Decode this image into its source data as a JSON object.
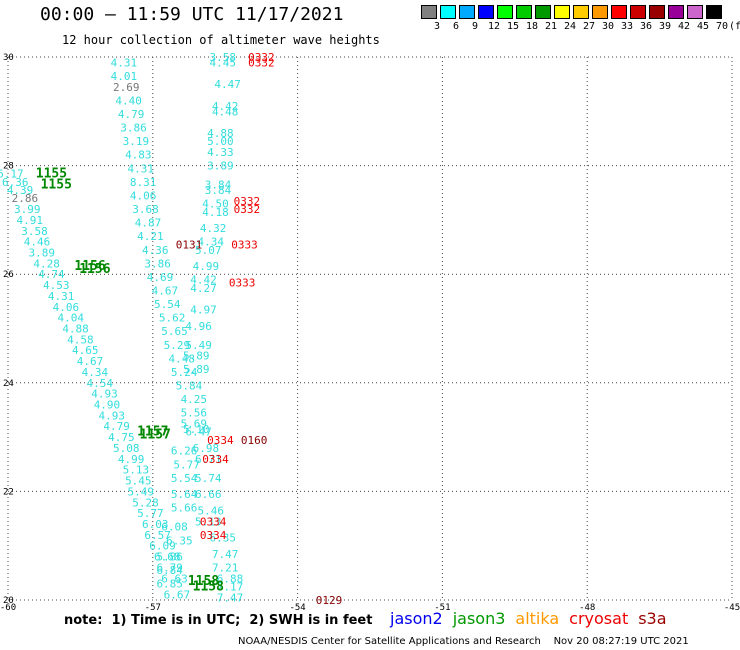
{
  "header": {
    "title": "00:00 – 11:59 UTC 11/17/2021",
    "subtitle": "12 hour collection of altimeter wave heights"
  },
  "legend": {
    "unit": "(ft)",
    "bins": [
      {
        "label": "3",
        "color": "#808080"
      },
      {
        "label": "6",
        "color": "#00ffff"
      },
      {
        "label": "9",
        "color": "#00aaff"
      },
      {
        "label": "12",
        "color": "#0000ff"
      },
      {
        "label": "15",
        "color": "#00ff00"
      },
      {
        "label": "18",
        "color": "#00cc00"
      },
      {
        "label": "21",
        "color": "#009900"
      },
      {
        "label": "24",
        "color": "#ffff00"
      },
      {
        "label": "27",
        "color": "#ffcc00"
      },
      {
        "label": "30",
        "color": "#ff9900"
      },
      {
        "label": "33",
        "color": "#ff0000"
      },
      {
        "label": "36",
        "color": "#cc0000"
      },
      {
        "label": "39",
        "color": "#990000"
      },
      {
        "label": "42",
        "color": "#990099"
      },
      {
        "label": "45",
        "color": "#cc66cc"
      },
      {
        "label": "70",
        "color": "#000000"
      }
    ]
  },
  "map": {
    "lon_range": [
      -60,
      -45
    ],
    "lat_range": [
      20,
      30
    ],
    "lon_ticks": [
      "-60",
      "-57",
      "-54",
      "-51",
      "-48",
      "-45"
    ],
    "lat_ticks": [
      "30",
      "28",
      "26",
      "24",
      "22",
      "20"
    ],
    "observations": [
      {
        "t": "4.31",
        "lon": -57.6,
        "lat": 29.9,
        "c": "#33dddd"
      },
      {
        "t": "4.01",
        "lon": -57.6,
        "lat": 29.65,
        "c": "#33dddd"
      },
      {
        "t": "2.69",
        "lon": -57.55,
        "lat": 29.45,
        "c": "#777777"
      },
      {
        "t": "4.40",
        "lon": -57.5,
        "lat": 29.2,
        "c": "#33dddd"
      },
      {
        "t": "4.79",
        "lon": -57.45,
        "lat": 28.95,
        "c": "#33dddd"
      },
      {
        "t": "3.86",
        "lon": -57.4,
        "lat": 28.7,
        "c": "#33dddd"
      },
      {
        "t": "3.19",
        "lon": -57.35,
        "lat": 28.45,
        "c": "#33dddd"
      },
      {
        "t": "4.83",
        "lon": -57.3,
        "lat": 28.2,
        "c": "#33dddd"
      },
      {
        "t": "4.31",
        "lon": -57.25,
        "lat": 27.95,
        "c": "#33dddd"
      },
      {
        "t": "8.31",
        "lon": -57.2,
        "lat": 27.7,
        "c": "#33dddd"
      },
      {
        "t": "4.06",
        "lon": -57.2,
        "lat": 27.45,
        "c": "#33dddd"
      },
      {
        "t": "3.68",
        "lon": -57.15,
        "lat": 27.2,
        "c": "#33dddd"
      },
      {
        "t": "4.87",
        "lon": -57.1,
        "lat": 26.95,
        "c": "#33dddd"
      },
      {
        "t": "4.21",
        "lon": -57.05,
        "lat": 26.7,
        "c": "#33dddd"
      },
      {
        "t": "4.36",
        "lon": -56.95,
        "lat": 26.45,
        "c": "#33dddd"
      },
      {
        "t": "3.86",
        "lon": -56.9,
        "lat": 26.2,
        "c": "#33dddd"
      },
      {
        "t": "4.69",
        "lon": -56.85,
        "lat": 25.95,
        "c": "#33dddd"
      },
      {
        "t": "4.67",
        "lon": -56.75,
        "lat": 25.7,
        "c": "#33dddd"
      },
      {
        "t": "5.54",
        "lon": -56.7,
        "lat": 25.45,
        "c": "#33dddd"
      },
      {
        "t": "5.62",
        "lon": -56.6,
        "lat": 25.2,
        "c": "#33dddd"
      },
      {
        "t": "5.65",
        "lon": -56.55,
        "lat": 24.95,
        "c": "#33dddd"
      },
      {
        "t": "5.29",
        "lon": -56.5,
        "lat": 24.7,
        "c": "#33dddd"
      },
      {
        "t": "4.48",
        "lon": -56.4,
        "lat": 24.45,
        "c": "#33dddd"
      },
      {
        "t": "5.24",
        "lon": -56.35,
        "lat": 24.2,
        "c": "#33dddd"
      },
      {
        "t": "5.84",
        "lon": -56.25,
        "lat": 23.95,
        "c": "#33dddd"
      },
      {
        "t": "4.25",
        "lon": -56.15,
        "lat": 23.7,
        "c": "#33dddd"
      },
      {
        "t": "5.56",
        "lon": -56.15,
        "lat": 23.45,
        "c": "#33dddd"
      },
      {
        "t": "5.10",
        "lon": -56.1,
        "lat": 23.15,
        "c": "#33dddd"
      },
      {
        "t": "6.26",
        "lon": -56.35,
        "lat": 22.75,
        "c": "#33dddd"
      },
      {
        "t": "5.77",
        "lon": -56.3,
        "lat": 22.5,
        "c": "#33dddd"
      },
      {
        "t": "5.54",
        "lon": -56.35,
        "lat": 22.25,
        "c": "#33dddd"
      },
      {
        "t": "5.64",
        "lon": -56.35,
        "lat": 21.95,
        "c": "#33dddd"
      },
      {
        "t": "5.66",
        "lon": -56.35,
        "lat": 21.7,
        "c": "#33dddd"
      },
      {
        "t": "6.08",
        "lon": -56.55,
        "lat": 21.35,
        "c": "#33dddd"
      },
      {
        "t": "6.35",
        "lon": -56.45,
        "lat": 21.1,
        "c": "#33dddd"
      },
      {
        "t": "5.86",
        "lon": -56.65,
        "lat": 20.8,
        "c": "#33dddd"
      },
      {
        "t": "6.84",
        "lon": -56.65,
        "lat": 20.55,
        "c": "#33dddd"
      },
      {
        "t": "6.85",
        "lon": -56.65,
        "lat": 20.3,
        "c": "#33dddd"
      },
      {
        "t": "6.67",
        "lon": -56.5,
        "lat": 20.1,
        "c": "#33dddd"
      },
      {
        "t": "3.58",
        "lon": -55.55,
        "lat": 30.0,
        "c": "#33dddd"
      },
      {
        "t": "4.45",
        "lon": -55.55,
        "lat": 29.9,
        "c": "#33dddd"
      },
      {
        "t": "4.47",
        "lon": -55.45,
        "lat": 29.5,
        "c": "#33dddd"
      },
      {
        "t": "4.42",
        "lon": -55.5,
        "lat": 29.1,
        "c": "#33dddd"
      },
      {
        "t": "4.48",
        "lon": -55.5,
        "lat": 29.0,
        "c": "#33dddd"
      },
      {
        "t": "4.88",
        "lon": -55.6,
        "lat": 28.6,
        "c": "#33dddd"
      },
      {
        "t": "5.00",
        "lon": -55.6,
        "lat": 28.45,
        "c": "#33dddd"
      },
      {
        "t": "4.33",
        "lon": -55.6,
        "lat": 28.25,
        "c": "#33dddd"
      },
      {
        "t": "3.89",
        "lon": -55.6,
        "lat": 28.0,
        "c": "#33dddd"
      },
      {
        "t": "3.84",
        "lon": -55.65,
        "lat": 27.65,
        "c": "#33dddd"
      },
      {
        "t": "3.84",
        "lon": -55.65,
        "lat": 27.55,
        "c": "#33dddd"
      },
      {
        "t": "4.50",
        "lon": -55.7,
        "lat": 27.3,
        "c": "#33dddd"
      },
      {
        "t": "4.18",
        "lon": -55.7,
        "lat": 27.15,
        "c": "#33dddd"
      },
      {
        "t": "4.32",
        "lon": -55.75,
        "lat": 26.85,
        "c": "#33dddd"
      },
      {
        "t": "4.34",
        "lon": -55.8,
        "lat": 26.6,
        "c": "#33dddd"
      },
      {
        "t": "5.07",
        "lon": -55.85,
        "lat": 26.45,
        "c": "#33dddd"
      },
      {
        "t": "4.99",
        "lon": -55.9,
        "lat": 26.15,
        "c": "#33dddd"
      },
      {
        "t": "4.42",
        "lon": -55.95,
        "lat": 25.9,
        "c": "#33dddd"
      },
      {
        "t": "4.27",
        "lon": -55.95,
        "lat": 25.75,
        "c": "#33dddd"
      },
      {
        "t": "4.97",
        "lon": -55.95,
        "lat": 25.35,
        "c": "#33dddd"
      },
      {
        "t": "4.96",
        "lon": -56.05,
        "lat": 25.05,
        "c": "#33dddd"
      },
      {
        "t": "5.49",
        "lon": -56.05,
        "lat": 24.7,
        "c": "#33dddd"
      },
      {
        "t": "5.89",
        "lon": -56.1,
        "lat": 24.5,
        "c": "#33dddd"
      },
      {
        "t": "5.89",
        "lon": -56.1,
        "lat": 24.25,
        "c": "#33dddd"
      },
      {
        "t": "5.69",
        "lon": -56.15,
        "lat": 23.25,
        "c": "#33dddd"
      },
      {
        "t": "6.47",
        "lon": -56.05,
        "lat": 23.1,
        "c": "#33dddd"
      },
      {
        "t": "6.98",
        "lon": -55.9,
        "lat": 22.8,
        "c": "#33dddd"
      },
      {
        "t": "6.71",
        "lon": -55.85,
        "lat": 22.6,
        "c": "#33dddd"
      },
      {
        "t": "5.74",
        "lon": -55.85,
        "lat": 22.25,
        "c": "#33dddd"
      },
      {
        "t": "6.66",
        "lon": -55.85,
        "lat": 21.95,
        "c": "#33dddd"
      },
      {
        "t": "5.46",
        "lon": -55.8,
        "lat": 21.65,
        "c": "#33dddd"
      },
      {
        "t": "5.13",
        "lon": -55.85,
        "lat": 21.45,
        "c": "#33dddd"
      },
      {
        "t": "6.35",
        "lon": -55.55,
        "lat": 21.15,
        "c": "#33dddd"
      },
      {
        "t": "7.47",
        "lon": -55.5,
        "lat": 20.85,
        "c": "#33dddd"
      },
      {
        "t": "7.21",
        "lon": -55.5,
        "lat": 20.6,
        "c": "#33dddd"
      },
      {
        "t": "6.88",
        "lon": -55.4,
        "lat": 20.4,
        "c": "#33dddd"
      },
      {
        "t": "7.17",
        "lon": -55.4,
        "lat": 20.25,
        "c": "#33dddd"
      },
      {
        "t": "7.47",
        "lon": -55.4,
        "lat": 20.05,
        "c": "#33dddd"
      },
      {
        "t": "6.17",
        "lon": -59.95,
        "lat": 27.85,
        "c": "#33dddd"
      },
      {
        "t": "6.36",
        "lon": -59.85,
        "lat": 27.7,
        "c": "#33dddd"
      },
      {
        "t": "4.39",
        "lon": -59.75,
        "lat": 27.55,
        "c": "#33dddd"
      },
      {
        "t": "2.86",
        "lon": -59.65,
        "lat": 27.4,
        "c": "#777777"
      },
      {
        "t": "3.99",
        "lon": -59.6,
        "lat": 27.2,
        "c": "#33dddd"
      },
      {
        "t": "4.91",
        "lon": -59.55,
        "lat": 27.0,
        "c": "#33dddd"
      },
      {
        "t": "3.58",
        "lon": -59.45,
        "lat": 26.8,
        "c": "#33dddd"
      },
      {
        "t": "4.46",
        "lon": -59.4,
        "lat": 26.6,
        "c": "#33dddd"
      },
      {
        "t": "3.89",
        "lon": -59.3,
        "lat": 26.4,
        "c": "#33dddd"
      },
      {
        "t": "4.28",
        "lon": -59.2,
        "lat": 26.2,
        "c": "#33dddd"
      },
      {
        "t": "4.74",
        "lon": -59.1,
        "lat": 26.0,
        "c": "#33dddd"
      },
      {
        "t": "4.53",
        "lon": -59.0,
        "lat": 25.8,
        "c": "#33dddd"
      },
      {
        "t": "4.31",
        "lon": -58.9,
        "lat": 25.6,
        "c": "#33dddd"
      },
      {
        "t": "4.06",
        "lon": -58.8,
        "lat": 25.4,
        "c": "#33dddd"
      },
      {
        "t": "4.04",
        "lon": -58.7,
        "lat": 25.2,
        "c": "#33dddd"
      },
      {
        "t": "4.88",
        "lon": -58.6,
        "lat": 25.0,
        "c": "#33dddd"
      },
      {
        "t": "4.58",
        "lon": -58.5,
        "lat": 24.8,
        "c": "#33dddd"
      },
      {
        "t": "4.65",
        "lon": -58.4,
        "lat": 24.6,
        "c": "#33dddd"
      },
      {
        "t": "4.67",
        "lon": -58.3,
        "lat": 24.4,
        "c": "#33dddd"
      },
      {
        "t": "4.34",
        "lon": -58.2,
        "lat": 24.2,
        "c": "#33dddd"
      },
      {
        "t": "4.54",
        "lon": -58.1,
        "lat": 24.0,
        "c": "#33dddd"
      },
      {
        "t": "4.93",
        "lon": -58.0,
        "lat": 23.8,
        "c": "#33dddd"
      },
      {
        "t": "4.90",
        "lon": -57.95,
        "lat": 23.6,
        "c": "#33dddd"
      },
      {
        "t": "4.93",
        "lon": -57.85,
        "lat": 23.4,
        "c": "#33dddd"
      },
      {
        "t": "4.79",
        "lon": -57.75,
        "lat": 23.2,
        "c": "#33dddd"
      },
      {
        "t": "4.75",
        "lon": -57.65,
        "lat": 23.0,
        "c": "#33dddd"
      },
      {
        "t": "5.08",
        "lon": -57.55,
        "lat": 22.8,
        "c": "#33dddd"
      },
      {
        "t": "4.99",
        "lon": -57.45,
        "lat": 22.6,
        "c": "#33dddd"
      },
      {
        "t": "5.13",
        "lon": -57.35,
        "lat": 22.4,
        "c": "#33dddd"
      },
      {
        "t": "5.45",
        "lon": -57.3,
        "lat": 22.2,
        "c": "#33dddd"
      },
      {
        "t": "5.49",
        "lon": -57.25,
        "lat": 22.0,
        "c": "#33dddd"
      },
      {
        "t": "5.28",
        "lon": -57.15,
        "lat": 21.8,
        "c": "#33dddd"
      },
      {
        "t": "5.77",
        "lon": -57.05,
        "lat": 21.6,
        "c": "#33dddd"
      },
      {
        "t": "6.03",
        "lon": -56.95,
        "lat": 21.4,
        "c": "#33dddd"
      },
      {
        "t": "6.57",
        "lon": -56.9,
        "lat": 21.2,
        "c": "#33dddd"
      },
      {
        "t": "6.09",
        "lon": -56.8,
        "lat": 21.0,
        "c": "#33dddd"
      },
      {
        "t": "6.68",
        "lon": -56.7,
        "lat": 20.8,
        "c": "#33dddd"
      },
      {
        "t": "6.79",
        "lon": -56.65,
        "lat": 20.6,
        "c": "#33dddd"
      },
      {
        "t": "6.63",
        "lon": -56.55,
        "lat": 20.4,
        "c": "#33dddd"
      },
      {
        "t": "1155",
        "lon": -59.1,
        "lat": 27.85,
        "c": "#008800",
        "b": true
      },
      {
        "t": "1155",
        "lon": -59.0,
        "lat": 27.65,
        "c": "#008800",
        "b": true
      },
      {
        "t": "1156",
        "lon": -58.3,
        "lat": 26.15,
        "c": "#008800",
        "b": true
      },
      {
        "t": "1156",
        "lon": -58.2,
        "lat": 26.1,
        "c": "#008800",
        "b": true
      },
      {
        "t": "1157",
        "lon": -57.0,
        "lat": 23.1,
        "c": "#008800",
        "b": true
      },
      {
        "t": "1157",
        "lon": -56.95,
        "lat": 23.05,
        "c": "#008800",
        "b": true
      },
      {
        "t": "1158",
        "lon": -55.95,
        "lat": 20.35,
        "c": "#008800",
        "b": true
      },
      {
        "t": "1158",
        "lon": -55.85,
        "lat": 20.25,
        "c": "#008800",
        "b": true
      },
      {
        "t": "0131",
        "lon": -56.25,
        "lat": 26.55,
        "c": "#880000"
      },
      {
        "t": "0129",
        "lon": -53.35,
        "lat": 20.0,
        "c": "#880000"
      },
      {
        "t": "0160",
        "lon": -54.9,
        "lat": 22.95,
        "c": "#880000"
      },
      {
        "t": "0332",
        "lon": -54.75,
        "lat": 30.0,
        "c": "#ee0000"
      },
      {
        "t": "0332",
        "lon": -54.75,
        "lat": 29.9,
        "c": "#ee0000"
      },
      {
        "t": "0332",
        "lon": -55.05,
        "lat": 27.35,
        "c": "#ee0000"
      },
      {
        "t": "0332",
        "lon": -55.05,
        "lat": 27.2,
        "c": "#ee0000"
      },
      {
        "t": "0333",
        "lon": -55.1,
        "lat": 26.55,
        "c": "#ee0000"
      },
      {
        "t": "0333",
        "lon": -55.15,
        "lat": 25.85,
        "c": "#ee0000"
      },
      {
        "t": "0334",
        "lon": -55.6,
        "lat": 22.95,
        "c": "#ee0000"
      },
      {
        "t": "0334",
        "lon": -55.7,
        "lat": 22.6,
        "c": "#ee0000"
      },
      {
        "t": "0334",
        "lon": -55.75,
        "lat": 21.45,
        "c": "#ee0000"
      },
      {
        "t": "0334",
        "lon": -55.75,
        "lat": 21.2,
        "c": "#ee0000"
      }
    ]
  },
  "footer": {
    "note": "note:  1) Time is in UTC;  2) SWH is in feet",
    "satellites": [
      {
        "name": "jason2",
        "color": "#0000ee"
      },
      {
        "name": "jason3",
        "color": "#009900"
      },
      {
        "name": "altika",
        "color": "#ff9900"
      },
      {
        "name": "cryosat",
        "color": "#ee0000"
      },
      {
        "name": "s3a",
        "color": "#990000"
      }
    ],
    "credit": "NOAA/NESDIS Center for Satellite Applications and Research    Nov 20 08:27:19 UTC 2021"
  }
}
